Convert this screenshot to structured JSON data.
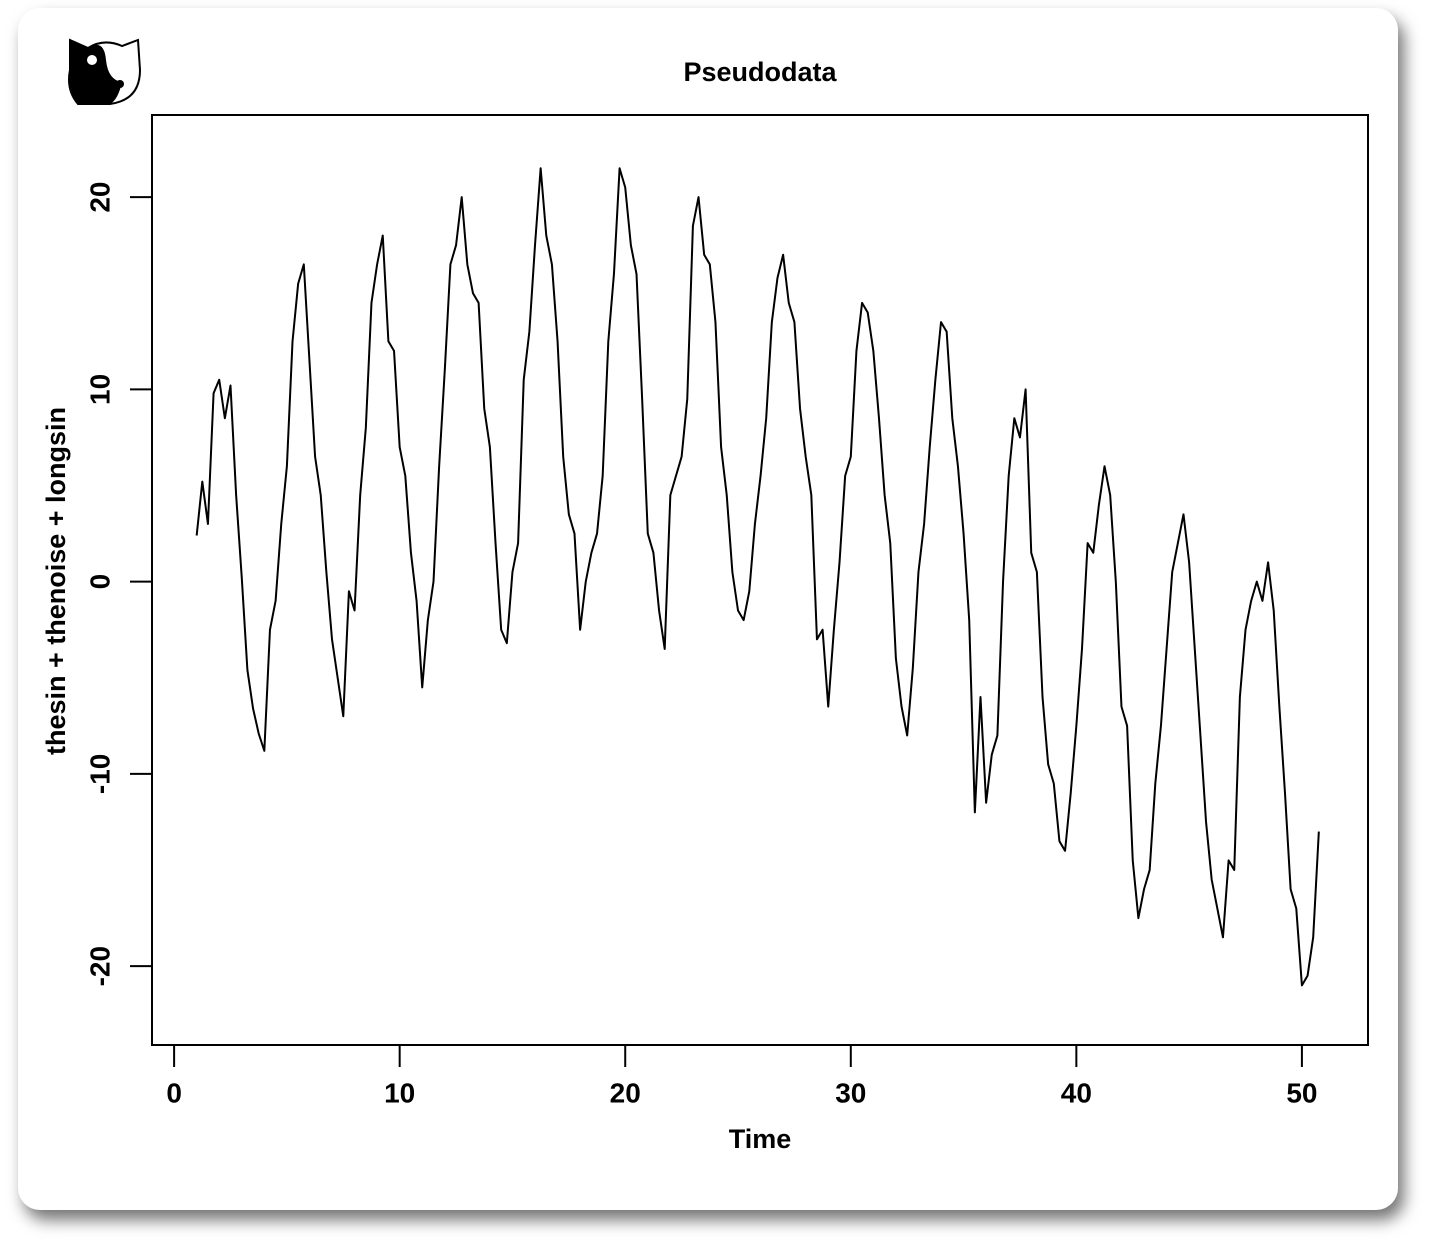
{
  "chart_data": {
    "type": "line",
    "title": "Pseudodata",
    "x_label": "Time",
    "y_label": "thesin + thenoise + longsin",
    "color": "#000000",
    "x": [
      1,
      1.25,
      1.5,
      1.75,
      2,
      2.25,
      2.5,
      2.75,
      3,
      3.25,
      3.5,
      3.75,
      4,
      4.25,
      4.5,
      4.75,
      5,
      5.25,
      5.5,
      5.75,
      6,
      6.25,
      6.5,
      6.75,
      7,
      7.25,
      7.5,
      7.75,
      8,
      8.25,
      8.5,
      8.75,
      9,
      9.25,
      9.5,
      9.75,
      10,
      10.25,
      10.5,
      10.75,
      11,
      11.25,
      11.5,
      11.75,
      12,
      12.25,
      12.5,
      12.75,
      13,
      13.25,
      13.5,
      13.75,
      14,
      14.25,
      14.5,
      14.75,
      15,
      15.25,
      15.5,
      15.75,
      16,
      16.25,
      16.5,
      16.75,
      17,
      17.25,
      17.5,
      17.75,
      18,
      18.25,
      18.5,
      18.75,
      19,
      19.25,
      19.5,
      19.75,
      20,
      20.25,
      20.5,
      20.75,
      21,
      21.25,
      21.5,
      21.75,
      22,
      22.25,
      22.5,
      22.75,
      23,
      23.25,
      23.5,
      23.75,
      24,
      24.25,
      24.5,
      24.75,
      25,
      25.25,
      25.5,
      25.75,
      26,
      26.25,
      26.5,
      26.75,
      27,
      27.25,
      27.5,
      27.75,
      28,
      28.25,
      28.5,
      28.75,
      29,
      29.25,
      29.5,
      29.75,
      30,
      30.25,
      30.5,
      30.75,
      31,
      31.25,
      31.5,
      31.75,
      32,
      32.25,
      32.5,
      32.75,
      33,
      33.25,
      33.5,
      33.75,
      34,
      34.25,
      34.5,
      34.75,
      35,
      35.25,
      35.5,
      35.75,
      36,
      36.25,
      36.5,
      36.75,
      37,
      37.25,
      37.5,
      37.75,
      38,
      38.25,
      38.5,
      38.75,
      39,
      39.25,
      39.5,
      39.75,
      40,
      40.25,
      40.5,
      40.75,
      41,
      41.25,
      41.5,
      41.75,
      42,
      42.25,
      42.5,
      42.75,
      43,
      43.25,
      43.5,
      43.75,
      44,
      44.25,
      44.5,
      44.75,
      45,
      45.25,
      45.5,
      45.75,
      46,
      46.25,
      46.5,
      46.75,
      47,
      47.25,
      47.5,
      47.75,
      48,
      48.25,
      48.5,
      48.75,
      49,
      49.25,
      49.5,
      49.75,
      50,
      50.25,
      50.5,
      50.75
    ],
    "values": [
      2.4,
      5.2,
      3.0,
      9.8,
      10.5,
      8.5,
      10.2,
      4.5,
      0.2,
      -4.6,
      -6.6,
      -7.9,
      -8.8,
      -2.5,
      -1.0,
      3.0,
      6.0,
      12.5,
      15.5,
      16.5,
      11.5,
      6.5,
      4.5,
      0.5,
      -3.0,
      -5.0,
      -7.0,
      -0.5,
      -1.5,
      4.5,
      8.0,
      14.5,
      16.5,
      18.0,
      12.5,
      12.0,
      7.0,
      5.5,
      1.5,
      -1.0,
      -5.5,
      -2.0,
      0.0,
      6.0,
      11.0,
      16.5,
      17.5,
      20.0,
      16.5,
      15.0,
      14.5,
      9.0,
      7.0,
      2.0,
      -2.5,
      -3.2,
      0.5,
      2.0,
      10.5,
      13.0,
      17.5,
      21.5,
      18.0,
      16.5,
      12.5,
      6.5,
      3.5,
      2.5,
      -2.5,
      0.0,
      1.5,
      2.5,
      5.5,
      12.5,
      16.0,
      21.5,
      20.5,
      17.5,
      16.0,
      9.5,
      2.5,
      1.5,
      -1.5,
      -3.5,
      4.5,
      5.5,
      6.5,
      9.5,
      18.5,
      20.0,
      17.0,
      16.5,
      13.5,
      7.0,
      4.5,
      0.5,
      -1.5,
      -2.0,
      -0.5,
      3.0,
      5.5,
      8.5,
      13.5,
      15.8,
      17.0,
      14.5,
      13.5,
      9.0,
      6.5,
      4.5,
      -3.0,
      -2.5,
      -6.5,
      -2.5,
      1.0,
      5.5,
      6.5,
      12.0,
      14.5,
      14.0,
      12.0,
      8.5,
      4.5,
      2.0,
      -4.0,
      -6.5,
      -8.0,
      -4.5,
      0.5,
      3.0,
      7.0,
      10.5,
      13.5,
      13.0,
      8.5,
      6.0,
      2.5,
      -2.0,
      -12.0,
      -6.0,
      -11.5,
      -9.0,
      -8.0,
      0.0,
      5.5,
      8.5,
      7.5,
      10.0,
      1.5,
      0.5,
      -6.0,
      -9.5,
      -10.5,
      -13.5,
      -14.0,
      -11.0,
      -7.5,
      -3.5,
      2.0,
      1.5,
      4.0,
      6.0,
      4.5,
      0.0,
      -6.5,
      -7.5,
      -14.5,
      -17.5,
      -16.0,
      -15.0,
      -10.5,
      -7.5,
      -3.5,
      0.5,
      2.0,
      3.5,
      1.0,
      -3.5,
      -8.0,
      -12.5,
      -15.5,
      -17.0,
      -18.5,
      -14.5,
      -15.0,
      -6.0,
      -2.5,
      -1.0,
      0.0,
      -1.0,
      1.0,
      -1.5,
      -6.5,
      -11.0,
      -16.0,
      -17.0,
      -21.0,
      -20.5,
      -18.5,
      -13.0
    ],
    "xlim": [
      -0.98,
      52.93
    ],
    "ylim": [
      -24.1,
      24.27
    ],
    "xticks": [
      0,
      10,
      20,
      30,
      40,
      50
    ],
    "yticks": [
      -20,
      -10,
      0,
      10,
      20
    ]
  }
}
